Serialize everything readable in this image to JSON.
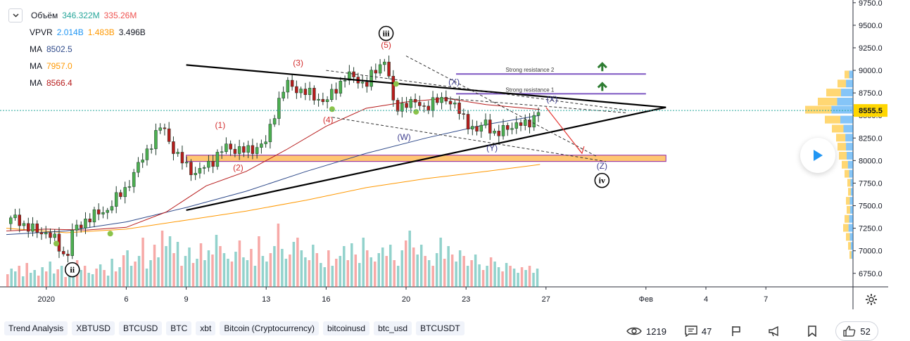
{
  "legend": {
    "volume": {
      "name": "Объём",
      "v1": "346.322M",
      "v2": "335.26M",
      "c1": "#26a69a",
      "c2": "#ef5350"
    },
    "vpvr": {
      "name": "VPVR",
      "v1": "2.014B",
      "v2": "1.483B",
      "v3": "3.496B",
      "c1": "#2196f3",
      "c2": "#ff9800",
      "c3": "#131722"
    },
    "ma": [
      {
        "name": "MA",
        "value": "8502.5",
        "color": "#2f4a8a"
      },
      {
        "name": "MA",
        "value": "7957.0",
        "color": "#ff9800"
      },
      {
        "name": "MA",
        "value": "8566.4",
        "color": "#b71c1c"
      }
    ]
  },
  "chart_data": {
    "type": "candlestick",
    "price_range": [
      6600,
      9780
    ],
    "y_ticks": [
      "9750.0",
      "9500.0",
      "9250.0",
      "9000.0",
      "8750.0",
      "8500.0",
      "8250.0",
      "8000.0",
      "7750.0",
      "7500.0",
      "7250.0",
      "7000.0",
      "6750.0"
    ],
    "x_ticks": [
      {
        "label": "2020",
        "day": 2
      },
      {
        "label": "6",
        "day": 6
      },
      {
        "label": "9",
        "day": 9
      },
      {
        "label": "13",
        "day": 13
      },
      {
        "label": "16",
        "day": 16
      },
      {
        "label": "20",
        "day": 20
      },
      {
        "label": "23",
        "day": 23
      },
      {
        "label": "27",
        "day": 27
      },
      {
        "label": "Фев",
        "day": 32
      },
      {
        "label": "4",
        "day": 35
      },
      {
        "label": "7",
        "day": 38
      }
    ],
    "current_price": {
      "label": "8555.5",
      "value": 8555.5,
      "color": "#ffd600"
    },
    "price_points": [
      {
        "day": 0.0,
        "price": 7300
      },
      {
        "day": 0.5,
        "price": 7380
      },
      {
        "day": 1.0,
        "price": 7250
      },
      {
        "day": 2.0,
        "price": 7200
      },
      {
        "day": 2.5,
        "price": 7100
      },
      {
        "day": 3.0,
        "price": 6900
      },
      {
        "day": 3.3,
        "price": 7200
      },
      {
        "day": 4.0,
        "price": 7350
      },
      {
        "day": 5.0,
        "price": 7450
      },
      {
        "day": 6.0,
        "price": 7700
      },
      {
        "day": 7.0,
        "price": 8100
      },
      {
        "day": 7.8,
        "price": 8400
      },
      {
        "day": 8.5,
        "price": 8050
      },
      {
        "day": 9.5,
        "price": 7850
      },
      {
        "day": 10.3,
        "price": 8000
      },
      {
        "day": 11.0,
        "price": 8150
      },
      {
        "day": 12.0,
        "price": 8100
      },
      {
        "day": 13.0,
        "price": 8200
      },
      {
        "day": 13.5,
        "price": 8600
      },
      {
        "day": 14.0,
        "price": 8850
      },
      {
        "day": 15.0,
        "price": 8750
      },
      {
        "day": 16.0,
        "price": 8650
      },
      {
        "day": 17.0,
        "price": 8950
      },
      {
        "day": 18.0,
        "price": 8850
      },
      {
        "day": 19.0,
        "price": 9150
      },
      {
        "day": 19.4,
        "price": 8550
      },
      {
        "day": 20.0,
        "price": 8650
      },
      {
        "day": 21.0,
        "price": 8600
      },
      {
        "day": 22.0,
        "price": 8700
      },
      {
        "day": 23.0,
        "price": 8450
      },
      {
        "day": 23.5,
        "price": 8300
      },
      {
        "day": 24.0,
        "price": 8450
      },
      {
        "day": 24.5,
        "price": 8250
      },
      {
        "day": 25.0,
        "price": 8380
      },
      {
        "day": 26.0,
        "price": 8400
      },
      {
        "day": 26.7,
        "price": 8555
      }
    ],
    "ma_fast": [
      [
        0,
        7220
      ],
      [
        2,
        7240
      ],
      [
        4,
        7230
      ],
      [
        6,
        7260
      ],
      [
        8,
        7430
      ],
      [
        10,
        7720
      ],
      [
        12,
        7880
      ],
      [
        14,
        8120
      ],
      [
        16,
        8380
      ],
      [
        18,
        8580
      ],
      [
        20,
        8650
      ],
      [
        22,
        8690
      ],
      [
        24,
        8620
      ],
      [
        26.7,
        8566
      ]
    ],
    "ma_mid": [
      [
        0,
        7180
      ],
      [
        3,
        7220
      ],
      [
        6,
        7320
      ],
      [
        9,
        7480
      ],
      [
        12,
        7660
      ],
      [
        15,
        7880
      ],
      [
        18,
        8080
      ],
      [
        21,
        8250
      ],
      [
        24,
        8400
      ],
      [
        26.7,
        8502
      ]
    ],
    "ma_slow": [
      [
        0,
        7250
      ],
      [
        3,
        7200
      ],
      [
        6,
        7240
      ],
      [
        9,
        7340
      ],
      [
        12,
        7440
      ],
      [
        15,
        7560
      ],
      [
        18,
        7700
      ],
      [
        21,
        7800
      ],
      [
        24,
        7880
      ],
      [
        26.7,
        7957
      ]
    ],
    "triangle_upper": [
      [
        9,
        9060
      ],
      [
        33,
        8590
      ]
    ],
    "triangle_lower": [
      [
        9,
        7450
      ],
      [
        33,
        8590
      ]
    ],
    "resistance": [
      {
        "label": "Strong resistance 2",
        "y": 8960,
        "x0": 22.5,
        "x1": 32
      },
      {
        "label": "Strong resistance 1",
        "y": 8740,
        "x0": 22.5,
        "x1": 32
      }
    ],
    "support_zone": {
      "y0": 7990,
      "y1": 8060,
      "x0": 9,
      "x1": 33
    },
    "wave_labels": [
      {
        "label": "(1)",
        "day": 10.7,
        "price": 8360,
        "color": "#d32f2f"
      },
      {
        "label": "(2)",
        "day": 11.6,
        "price": 7890,
        "color": "#d32f2f"
      },
      {
        "label": "(3)",
        "day": 14.6,
        "price": 9050,
        "color": "#d32f2f"
      },
      {
        "label": "(4)",
        "day": 16.1,
        "price": 8420,
        "color": "#d32f2f"
      },
      {
        "label": "(5)",
        "day": 19.0,
        "price": 9250,
        "color": "#d32f2f"
      },
      {
        "label": "(W)",
        "day": 19.9,
        "price": 8230,
        "color": "#3f3f8f"
      },
      {
        "label": "(X)",
        "day": 22.4,
        "price": 8840,
        "color": "#3f3f8f"
      },
      {
        "label": "(Y)",
        "day": 24.3,
        "price": 8110,
        "color": "#3f3f8f"
      },
      {
        "label": "(X)",
        "day": 27.3,
        "price": 8650,
        "color": "#3f3f8f"
      },
      {
        "label": "(Z)",
        "day": 29.8,
        "price": 7910,
        "color": "#3f3f8f"
      }
    ],
    "circle_labels": [
      {
        "label": "ii",
        "day": 3.3,
        "price": 6790
      },
      {
        "label": "iii",
        "day": 19.0,
        "price": 9410
      },
      {
        "label": "iv",
        "day": 29.8,
        "price": 7780
      }
    ],
    "volume_bars": [
      18,
      26,
      22,
      30,
      15,
      34,
      20,
      24,
      16,
      28,
      22,
      36,
      19,
      25,
      30,
      14,
      22,
      26,
      38,
      24,
      30,
      20,
      18,
      26,
      32,
      24,
      16,
      40,
      22,
      28,
      45,
      52,
      30,
      36,
      44,
      70,
      26,
      38,
      60,
      42,
      80,
      58,
      72,
      48,
      64,
      30,
      44,
      56,
      34,
      40,
      62,
      38,
      52,
      46,
      74,
      58,
      48,
      40,
      36,
      50,
      66,
      42,
      38,
      54,
      30,
      72,
      44,
      36,
      48,
      58,
      90,
      54,
      40,
      46,
      64,
      70,
      52,
      42,
      38,
      60,
      48,
      34,
      28,
      52,
      30,
      40,
      44,
      58,
      38,
      62,
      46,
      34,
      70,
      52,
      42,
      36,
      48,
      56,
      44,
      60,
      38,
      30,
      52,
      66,
      80,
      56,
      46,
      60,
      44,
      38,
      30,
      48,
      70,
      40,
      58,
      46,
      36,
      52,
      44,
      30,
      38,
      46,
      32,
      24,
      30,
      42,
      36,
      28,
      22,
      34,
      30,
      26,
      20,
      28,
      24,
      30,
      20,
      26
    ]
  },
  "tags": [
    "Trend Analysis",
    "XBTUSD",
    "BTCUSD",
    "BTC",
    "xbt",
    "Bitcoin (Cryptocurrency)",
    "bitcoinusd",
    "btc_usd",
    "BTCUSDT"
  ],
  "stats": {
    "views": "1219",
    "comments": "47",
    "likes": "52"
  },
  "icons": {
    "views": "eye-icon",
    "comments": "comment-icon",
    "flag": "flag-icon",
    "share": "megaphone-icon",
    "bookmark": "bookmark-icon",
    "like": "thumbs-up-icon",
    "settings": "gear-icon",
    "play": "play-icon"
  }
}
